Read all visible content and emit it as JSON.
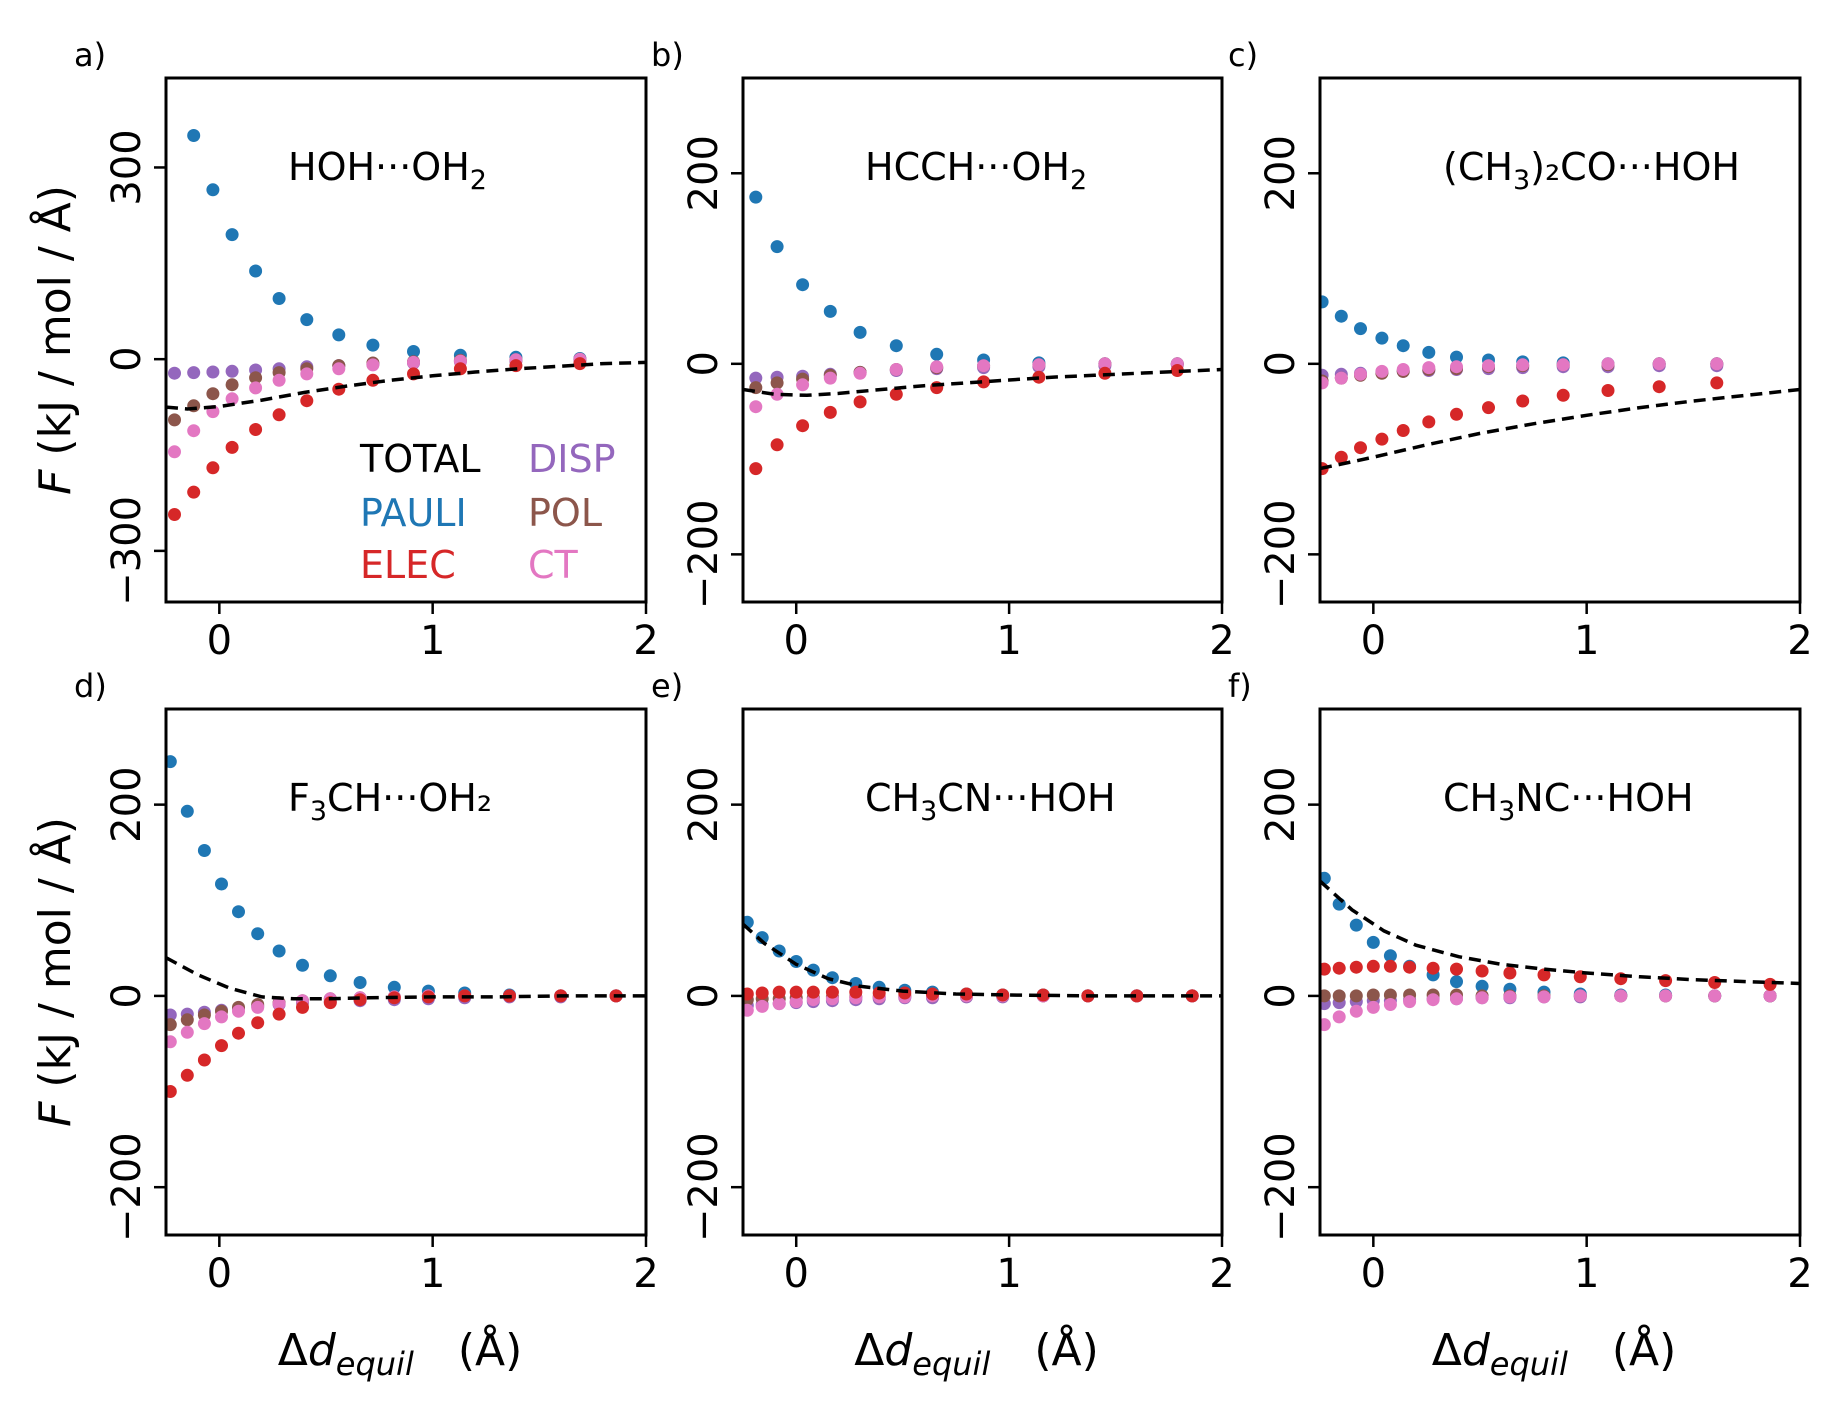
{
  "figure": {
    "ylabel_italic": "F",
    "ylabel_rest": " (kJ / mol / Å)",
    "xlabel_delta": "Δ",
    "xlabel_italic": "d",
    "xlabel_sub": "equil",
    "xlabel_unit": "(Å)"
  },
  "legend": {
    "total": "TOTAL",
    "pauli": "PAULI",
    "elec": "ELEC",
    "disp": "DISP",
    "pol": "POL",
    "ct": "CT"
  },
  "colors": {
    "total": "#000000",
    "pauli": "#1f77b4",
    "elec": "#d62728",
    "disp": "#9467bd",
    "pol": "#8c564b",
    "ct": "#e377c2"
  },
  "chart_data": [
    {
      "type": "scatter",
      "panel_label": "a)",
      "title": "HOH···OH",
      "title_sub": "2",
      "title_tail": "",
      "xlim": [
        -0.25,
        2
      ],
      "ylim": [
        -380,
        440
      ],
      "xticks": [
        0,
        1,
        2
      ],
      "xtick_labels": [
        "0",
        "1",
        "2"
      ],
      "yticks": [
        -300,
        0,
        300
      ],
      "ytick_labels": [
        "−300",
        "0",
        "300"
      ],
      "x": [
        -0.21,
        -0.12,
        -0.03,
        0.06,
        0.17,
        0.28,
        0.41,
        0.56,
        0.72,
        0.91,
        1.13,
        1.39,
        1.69
      ],
      "series": [
        {
          "name": "PAULI",
          "key": "pauli",
          "values": [
            null,
            350,
            265,
            195,
            138,
            95,
            62,
            38,
            22,
            12,
            6,
            3,
            1
          ]
        },
        {
          "name": "DISP",
          "key": "disp",
          "values": [
            -22,
            -21,
            -20,
            -19,
            -17,
            -15,
            -12,
            -10,
            -8,
            -6,
            -4,
            -3,
            -2
          ]
        },
        {
          "name": "POL",
          "key": "pol",
          "values": [
            -95,
            -73,
            -54,
            -40,
            -29,
            -21,
            -15,
            -10,
            -6,
            -4,
            -2,
            -1,
            0
          ]
        },
        {
          "name": "CT",
          "key": "ct",
          "values": [
            -145,
            -112,
            -82,
            -62,
            -45,
            -33,
            -23,
            -15,
            -9,
            -5,
            -3,
            -1,
            0
          ]
        },
        {
          "name": "ELEC",
          "key": "elec",
          "values": [
            -243,
            -208,
            -170,
            -138,
            -110,
            -87,
            -65,
            -47,
            -33,
            -23,
            -15,
            -10,
            -7
          ]
        }
      ],
      "total_curve": {
        "x": [
          -0.25,
          -0.15,
          0,
          0.2,
          0.4,
          0.6,
          0.8,
          1.0,
          1.2,
          1.4,
          1.6,
          1.8,
          2.0
        ],
        "y": [
          -75,
          -78,
          -74,
          -64,
          -52,
          -42,
          -33,
          -26,
          -20,
          -15,
          -11,
          -7,
          -5
        ]
      },
      "legend": true
    },
    {
      "type": "scatter",
      "panel_label": "b)",
      "title": "HCCH···OH",
      "title_sub": "2",
      "title_tail": "",
      "xlim": [
        -0.25,
        2
      ],
      "ylim": [
        -250,
        300
      ],
      "xticks": [
        0,
        1,
        2
      ],
      "xtick_labels": [
        "0",
        "1",
        "2"
      ],
      "yticks": [
        -200,
        0,
        200
      ],
      "ytick_labels": [
        "−200",
        "0",
        "200"
      ],
      "x": [
        -0.19,
        -0.09,
        0.03,
        0.16,
        0.3,
        0.47,
        0.66,
        0.88,
        1.14,
        1.45,
        1.79
      ],
      "series": [
        {
          "name": "PAULI",
          "key": "pauli",
          "values": [
            175,
            123,
            83,
            55,
            33,
            19,
            10,
            4,
            1,
            0,
            0
          ]
        },
        {
          "name": "DISP",
          "key": "disp",
          "values": [
            -15,
            -14,
            -13,
            -11,
            -9,
            -7,
            -5,
            -4,
            -3,
            -2,
            -1
          ]
        },
        {
          "name": "POL",
          "key": "pol",
          "values": [
            -25,
            -20,
            -16,
            -12,
            -9,
            -6,
            -4,
            -2,
            -1,
            0,
            0
          ]
        },
        {
          "name": "CT",
          "key": "ct",
          "values": [
            -45,
            -32,
            -22,
            -15,
            -10,
            -6,
            -3,
            -2,
            -1,
            0,
            0
          ]
        },
        {
          "name": "ELEC",
          "key": "elec",
          "values": [
            -110,
            -85,
            -65,
            -51,
            -40,
            -32,
            -25,
            -19,
            -14,
            -10,
            -7
          ]
        }
      ],
      "total_curve": {
        "x": [
          -0.25,
          -0.1,
          0.05,
          0.2,
          0.4,
          0.6,
          0.8,
          1.0,
          1.2,
          1.4,
          1.6,
          1.8,
          2.0
        ],
        "y": [
          -27,
          -32,
          -33,
          -31,
          -27,
          -23,
          -20,
          -17,
          -14,
          -12,
          -10,
          -8,
          -6
        ]
      },
      "legend": false
    },
    {
      "type": "scatter",
      "panel_label": "c)",
      "title": "(CH",
      "title_sub": "3",
      "title_tail": ")₂CO···HOH",
      "xlim": [
        -0.25,
        2
      ],
      "ylim": [
        -250,
        300
      ],
      "xticks": [
        0,
        1,
        2
      ],
      "xtick_labels": [
        "0",
        "1",
        "2"
      ],
      "yticks": [
        -200,
        0,
        200
      ],
      "ytick_labels": [
        "−200",
        "0",
        "200"
      ],
      "x": [
        -0.24,
        -0.15,
        -0.06,
        0.04,
        0.14,
        0.26,
        0.39,
        0.54,
        0.7,
        0.89,
        1.1,
        1.34,
        1.61
      ],
      "series": [
        {
          "name": "PAULI",
          "key": "pauli",
          "values": [
            65,
            50,
            37,
            27,
            19,
            12,
            7,
            4,
            2,
            1,
            0,
            0,
            0
          ]
        },
        {
          "name": "DISP",
          "key": "disp",
          "values": [
            -12,
            -11,
            -10,
            -9,
            -8,
            -7,
            -6,
            -5,
            -4,
            -3,
            -3,
            -2,
            -2
          ]
        },
        {
          "name": "POL",
          "key": "pol",
          "values": [
            -18,
            -15,
            -12,
            -10,
            -8,
            -6,
            -5,
            -3,
            -2,
            -1,
            -1,
            0,
            0
          ]
        },
        {
          "name": "CT",
          "key": "ct",
          "values": [
            -20,
            -15,
            -11,
            -8,
            -6,
            -4,
            -3,
            -2,
            -1,
            -1,
            0,
            0,
            0
          ]
        },
        {
          "name": "ELEC",
          "key": "elec",
          "values": [
            -110,
            -98,
            -88,
            -79,
            -70,
            -61,
            -53,
            -46,
            -39,
            -33,
            -28,
            -24,
            -20
          ]
        }
      ],
      "total_curve": {
        "x": [
          -0.25,
          0,
          0.25,
          0.5,
          0.75,
          1.0,
          1.25,
          1.5,
          1.75,
          2.0
        ],
        "y": [
          -110,
          -98,
          -85,
          -73,
          -63,
          -54,
          -46,
          -39,
          -33,
          -27
        ]
      },
      "legend": false
    },
    {
      "type": "scatter",
      "panel_label": "d)",
      "title": "F",
      "title_sub": "3",
      "title_tail": "CH···OH₂",
      "xlim": [
        -0.25,
        2
      ],
      "ylim": [
        -250,
        300
      ],
      "xticks": [
        0,
        1,
        2
      ],
      "xtick_labels": [
        "0",
        "1",
        "2"
      ],
      "yticks": [
        -200,
        0,
        200
      ],
      "ytick_labels": [
        "−200",
        "0",
        "200"
      ],
      "x": [
        -0.23,
        -0.15,
        -0.07,
        0.01,
        0.09,
        0.18,
        0.28,
        0.39,
        0.52,
        0.66,
        0.82,
        0.98,
        1.15,
        1.36,
        1.6,
        1.86
      ],
      "series": [
        {
          "name": "PAULI",
          "key": "pauli",
          "values": [
            245,
            193,
            152,
            117,
            88,
            65,
            47,
            32,
            21,
            14,
            9,
            5,
            3,
            1,
            0,
            0
          ]
        },
        {
          "name": "DISP",
          "key": "disp",
          "values": [
            -20,
            -19,
            -17,
            -15,
            -13,
            -11,
            -9,
            -7,
            -6,
            -5,
            -4,
            -3,
            -2,
            -1,
            -1,
            0
          ]
        },
        {
          "name": "POL",
          "key": "pol",
          "values": [
            -30,
            -25,
            -20,
            -16,
            -12,
            -9,
            -7,
            -5,
            -3,
            -2,
            -1,
            0,
            0,
            0,
            0,
            0
          ]
        },
        {
          "name": "CT",
          "key": "ct",
          "values": [
            -48,
            -38,
            -29,
            -22,
            -16,
            -12,
            -8,
            -5,
            -3,
            -2,
            -1,
            0,
            0,
            0,
            0,
            0
          ]
        },
        {
          "name": "ELEC",
          "key": "elec",
          "values": [
            -100,
            -83,
            -67,
            -52,
            -39,
            -28,
            -19,
            -12,
            -7,
            -4,
            -2,
            -1,
            0,
            0,
            0,
            0
          ]
        }
      ],
      "total_curve": {
        "x": [
          -0.25,
          -0.1,
          0.05,
          0.2,
          0.35,
          0.5,
          0.7,
          1.0,
          1.3,
          1.6,
          2.0
        ],
        "y": [
          40,
          22,
          8,
          -1,
          -3,
          -3,
          -2,
          -1,
          -1,
          0,
          0
        ]
      },
      "legend": false
    },
    {
      "type": "scatter",
      "panel_label": "e)",
      "title": "CH",
      "title_sub": "3",
      "title_tail": "CN···HOH",
      "xlim": [
        -0.25,
        2
      ],
      "ylim": [
        -250,
        300
      ],
      "xticks": [
        0,
        1,
        2
      ],
      "xtick_labels": [
        "0",
        "1",
        "2"
      ],
      "yticks": [
        -200,
        0,
        200
      ],
      "ytick_labels": [
        "−200",
        "0",
        "200"
      ],
      "x": [
        -0.23,
        -0.16,
        -0.08,
        0,
        0.08,
        0.17,
        0.28,
        0.39,
        0.51,
        0.64,
        0.8,
        0.97,
        1.16,
        1.37,
        1.6,
        1.86
      ],
      "series": [
        {
          "name": "PAULI",
          "key": "pauli",
          "values": [
            77,
            61,
            47,
            36,
            27,
            19,
            13,
            9,
            6,
            4,
            2,
            1,
            1,
            0,
            0,
            0
          ]
        },
        {
          "name": "DISP",
          "key": "disp",
          "values": [
            -10,
            -9,
            -8,
            -7,
            -6,
            -5,
            -4,
            -3,
            -2,
            -2,
            -1,
            -1,
            0,
            0,
            0,
            0
          ]
        },
        {
          "name": "POL",
          "key": "pol",
          "values": [
            -4,
            -3,
            -3,
            -2,
            -2,
            -1,
            -1,
            -1,
            0,
            0,
            0,
            0,
            0,
            0,
            0,
            0
          ]
        },
        {
          "name": "CT",
          "key": "ct",
          "values": [
            -15,
            -11,
            -8,
            -6,
            -4,
            -3,
            -2,
            -1,
            -1,
            0,
            0,
            0,
            0,
            0,
            0,
            0
          ]
        },
        {
          "name": "ELEC",
          "key": "elec",
          "values": [
            2,
            3,
            4,
            4,
            4,
            4,
            4,
            3,
            3,
            2,
            2,
            1,
            1,
            0,
            0,
            0
          ]
        }
      ],
      "total_curve": {
        "x": [
          -0.25,
          -0.15,
          0,
          0.15,
          0.3,
          0.5,
          0.75,
          1.0,
          1.4,
          2.0
        ],
        "y": [
          75,
          55,
          33,
          18,
          10,
          5,
          2,
          1,
          0,
          0
        ]
      },
      "legend": false
    },
    {
      "type": "scatter",
      "panel_label": "f)",
      "title": "CH",
      "title_sub": "3",
      "title_tail": "NC···HOH",
      "xlim": [
        -0.25,
        2
      ],
      "ylim": [
        -250,
        300
      ],
      "xticks": [
        0,
        1,
        2
      ],
      "xtick_labels": [
        "0",
        "1",
        "2"
      ],
      "yticks": [
        -200,
        0,
        200
      ],
      "ytick_labels": [
        "−200",
        "0",
        "200"
      ],
      "x": [
        -0.23,
        -0.16,
        -0.08,
        0,
        0.08,
        0.17,
        0.28,
        0.39,
        0.51,
        0.64,
        0.8,
        0.97,
        1.16,
        1.37,
        1.6,
        1.86
      ],
      "series": [
        {
          "name": "PAULI",
          "key": "pauli",
          "values": [
            123,
            96,
            74,
            56,
            42,
            31,
            22,
            15,
            10,
            7,
            4,
            2,
            1,
            1,
            0,
            0
          ]
        },
        {
          "name": "DISP",
          "key": "disp",
          "values": [
            -8,
            -7,
            -6,
            -5,
            -5,
            -4,
            -3,
            -3,
            -2,
            -2,
            -1,
            -1,
            0,
            0,
            0,
            0
          ]
        },
        {
          "name": "POL",
          "key": "pol",
          "values": [
            0,
            0,
            0,
            1,
            1,
            1,
            1,
            1,
            0,
            0,
            0,
            0,
            0,
            0,
            0,
            0
          ]
        },
        {
          "name": "CT",
          "key": "ct",
          "values": [
            -30,
            -22,
            -16,
            -12,
            -9,
            -6,
            -4,
            -3,
            -2,
            -1,
            -1,
            0,
            0,
            0,
            0,
            0
          ]
        },
        {
          "name": "ELEC",
          "key": "elec",
          "values": [
            28,
            29,
            30,
            31,
            31,
            30,
            29,
            28,
            26,
            24,
            22,
            20,
            18,
            16,
            14,
            12
          ]
        }
      ],
      "total_curve": {
        "x": [
          -0.25,
          -0.1,
          0.05,
          0.2,
          0.4,
          0.6,
          0.8,
          1.0,
          1.25,
          1.5,
          1.75,
          2.0
        ],
        "y": [
          120,
          90,
          68,
          53,
          41,
          33,
          28,
          24,
          20,
          17,
          15,
          13
        ]
      },
      "legend": false
    }
  ]
}
